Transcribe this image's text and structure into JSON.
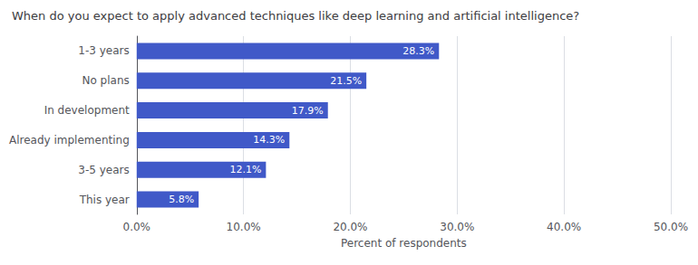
{
  "chart_data": {
    "type": "bar",
    "title": "When do you expect to apply advanced techniques like deep learning and artificial intelligence?",
    "orientation": "horizontal",
    "categories": [
      "This year",
      "3-5 years",
      "Already implementing",
      "In development",
      "No plans",
      "1-3 years"
    ],
    "values": [
      5.8,
      12.1,
      14.3,
      17.9,
      21.5,
      28.3
    ],
    "value_labels": [
      "5.8%",
      "12.1%",
      "14.3%",
      "17.9%",
      "21.5%",
      "28.3%"
    ],
    "data_labels": true,
    "color": "#4059c8",
    "xlabel": "Percent of respondents",
    "xlim": [
      0,
      50
    ],
    "xticks": [
      {
        "value": 0,
        "label": "0.0%"
      },
      {
        "value": 10,
        "label": "10.0%"
      },
      {
        "value": 20,
        "label": "20.0%"
      },
      {
        "value": 30,
        "label": "30.0%"
      },
      {
        "value": 40,
        "label": "40.0%"
      },
      {
        "value": 50,
        "label": "50.0%"
      }
    ],
    "grid": true
  }
}
